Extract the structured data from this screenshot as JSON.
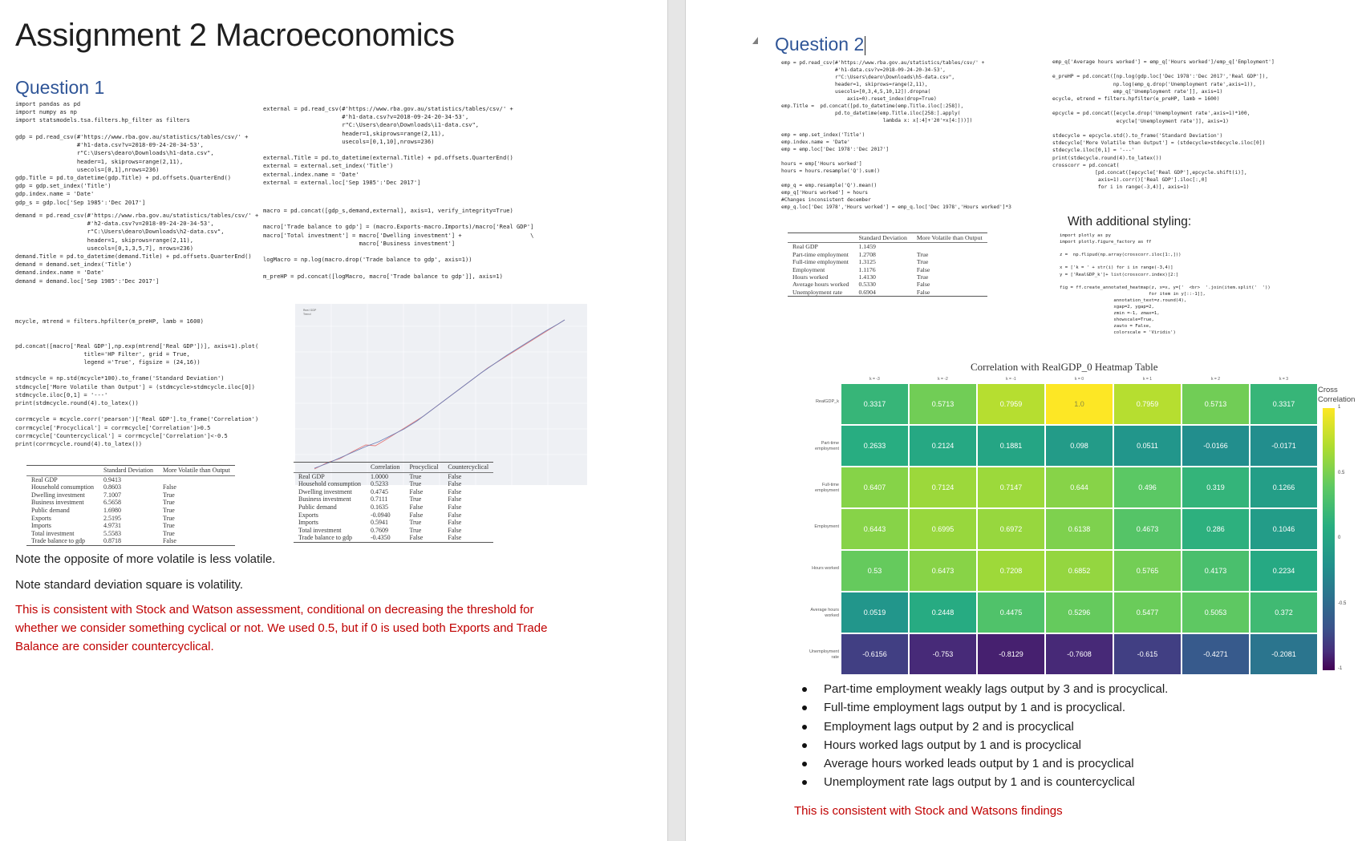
{
  "page1": {
    "title": "Assignment 2 Macroeconomics",
    "q1_heading": "Question 1",
    "code_imports": "import pandas as pd\nimport numpy as np\nimport statsmodels.tsa.filters.hp_filter as filters",
    "code_gdp": "gdp = pd.read_csv(#'https://www.rba.gov.au/statistics/tables/csv/' +\n                  #'h1-data.csv?v=2018-09-24-20-34-53',\n                  r\"C:\\Users\\dearo\\Downloads\\h1-data.csv\",\n                  header=1, skiprows=range(2,11),\n                  usecols=[0,1],nrows=236)\ngdp.Title = pd.to_datetime(gdp.Title) + pd.offsets.QuarterEnd()\ngdp = gdp.set_index('Title')\ngdp.index.name = 'Date'\ngdp_s = gdp.loc['Sep 1985':'Dec 2017']",
    "code_demand": "demand = pd.read_csv(#'https://www.rba.gov.au/statistics/tables/csv/' +\n                     #'h2-data.csv?v=2018-09-24-20-34-53',\n                     r\"C:\\Users\\dearo\\Downloads\\h2-data.csv\",\n                     header=1, skiprows=range(2,11),\n                     usecols=[0,1,3,5,7], nrows=236)\ndemand.Title = pd.to_datetime(demand.Title) + pd.offsets.QuarterEnd()\ndemand = demand.set_index('Title')\ndemand.index.name = 'Date'\ndemand = demand.loc['Sep 1985':'Dec 2017']",
    "code_external": "external = pd.read_csv(#'https://www.rba.gov.au/statistics/tables/csv/' +\n                       #'h1-data.csv?v=2018-09-24-20-34-53',\n                       r\"C:\\Users\\dearo\\Downloads\\i1-data.csv\",\n                       header=1,skiprows=range(2,11),\n                       usecols=[0,1,10],nrows=236)\n\nexternal.Title = pd.to_datetime(external.Title) + pd.offsets.QuarterEnd()\nexternal = external.set_index('Title')\nexternal.index.name = 'Date'\nexternal = external.loc['Sep 1985':'Dec 2017']",
    "code_macro": "macro = pd.concat([gdp_s,demand,external], axis=1, verify_integrity=True)\n\nmacro['Trade balance to gdp'] = (macro.Exports-macro.Imports)/macro['Real GDP']\nmacro['Total investment'] = macro['Dwelling investment'] +                    \\\n                            macro['Business investment']\n\nlogMacro = np.log(macro.drop('Trade balance to gdp', axis=1))\n\nm_preHP = pd.concat([logMacro, macro['Trade balance to gdp']], axis=1)",
    "code_filter": "mcycle, mtrend = filters.hpfilter(m_preHP, lamb = 1600)\n\n\npd.concat([macro['Real GDP'],np.exp(mtrend['Real GDP'])], axis=1).plot(\n                    title='HP Filter', grid = True,\n                    legend ='True', figsize = (24,16))\n\nstdmcycle = np.std(mcycle*100).to_frame('Standard Deviation')\nstdmcycle['More Volatile than Output'] = (stdmcycle>stdmcycle.iloc[0])\nstdmcycle.iloc[0,1] = '---'\nprint(stdmcycle.round(4).to_latex())\n\ncorrmcycle = mcycle.corr('pearson')['Real GDP'].to_frame('Correlation')\ncorrmcycle['Procyclical'] = corrmcycle['Correlation']>0.5\ncorrmcycle['Countercyclical'] = corrmcycle['Correlation']<-0.5\nprint(corrmcycle.round(4).to_latex())",
    "plot_legend": [
      "Real GDP",
      "Trend"
    ],
    "table_std": {
      "headers": [
        "",
        "Standard Deviation",
        "More Volatile than Output"
      ],
      "rows": [
        [
          "Real GDP",
          "0.9413",
          ""
        ],
        [
          "Household consumption",
          "0.8603",
          "False"
        ],
        [
          "Dwelling investment",
          "7.1007",
          "True"
        ],
        [
          "Business investment",
          "6.5658",
          "True"
        ],
        [
          "Public demand",
          "1.6980",
          "True"
        ],
        [
          "Exports",
          "2.5195",
          "True"
        ],
        [
          "Imports",
          "4.9731",
          "True"
        ],
        [
          "Total investment",
          "5.5583",
          "True"
        ],
        [
          "Trade balance to gdp",
          "0.8718",
          "False"
        ]
      ]
    },
    "table_corr": {
      "headers": [
        "",
        "Correlation",
        "Procyclical",
        "Countercyclical"
      ],
      "rows": [
        [
          "Real GDP",
          "1.0000",
          "True",
          "False"
        ],
        [
          "Household consumption",
          "0.5233",
          "True",
          "False"
        ],
        [
          "Dwelling investment",
          "0.4745",
          "False",
          "False"
        ],
        [
          "Business investment",
          "0.7111",
          "True",
          "False"
        ],
        [
          "Public demand",
          "0.1635",
          "False",
          "False"
        ],
        [
          "Exports",
          "-0.0940",
          "False",
          "False"
        ],
        [
          "Imports",
          "0.5941",
          "True",
          "False"
        ],
        [
          "Total investment",
          "0.7609",
          "True",
          "False"
        ],
        [
          "Trade balance to gdp",
          "-0.4350",
          "False",
          "False"
        ]
      ]
    },
    "note1": "Note the opposite of more volatile is less volatile.",
    "note2": "Note standard deviation square is volatility.",
    "note3": "This is consistent with Stock and Watson assessment, conditional on decreasing the threshold for whether we consider something cyclical or not. We used 0.5, but if 0 is used both Exports and Trade Balance are consider countercyclical."
  },
  "page2": {
    "q2_heading": "Question 2",
    "code_emp": "emp = pd.read_csv(#'https://www.rba.gov.au/statistics/tables/csv/' +\n                  #'h1-data.csv?v=2018-09-24-20-34-53',\n                  r\"C:\\Users\\dearo\\Downloads\\h5-data.csv\",\n                  header=1, skiprows=range(2,11),\n                  usecols=[0,3,4,5,10,12]).dropna(\n                      axis=0).reset_index(drop=True)\nemp.Title =  pd.concat([pd.to_datetime(emp.Title.iloc[:258]),\n                  pd.to_datetime(emp.Title.iloc[258:].apply(\n                                  lambda x: x[:4]+'20'+x[4:]))])\n\nemp = emp.set_index('Title')\nemp.index.name = 'Date'\nemp = emp.loc['Dec 1978':'Dec 2017']\n\nhours = emp['Hours worked']\nhours = hours.resample('Q').sum()\n\nemp_q = emp.resample('Q').mean()\nemp_q['Hours worked'] = hours\n#Changes inconsistent december\nemp_q.loc['Dec 1978','Hours worked'] = emp_q.loc['Dec 1978','Hours worked']*3",
    "code_right": "emp_q['Average hours worked'] = emp_q['Hours worked']/emp_q['Employment']\n\ne_preHP = pd.concat([np.log(gdp.loc['Dec 1978':'Dec 2017','Real GDP']),\n                    np.log(emp_q.drop('Unemployment rate',axis=1)),\n                    emp_q['Unemployment rate']], axis=1)\necycle, etrend = filters.hpfilter(e_preHP, lamb = 1600)\n\nepcycle = pd.concat([ecycle.drop('Unemployment rate',axis=1)*100,\n                     ecycle['Unemployment rate']], axis=1)\n\nstdecycle = epcycle.std().to_frame('Standard Deviation')\nstdecycle['More Volatile than Output'] = (stdecycle>stdecycle.iloc[0])\nstdecycle.iloc[0,1] = '---'\nprint(stdecycle.round(4).to_latex())\ncrosscorr = pd.concat(\n              [pd.concat([epcycle['Real GDP'],epcycle.shift(i)],\n               axis=1).corr()['Real GDP'].iloc[:,0]\n               for i in range(-3,4)], axis=1)",
    "styling_label": "With additional styling:",
    "code_styling": "import plotly as py\nimport plotly.figure_factory as ff\n\nz =  np.flipud(np.array(crosscorr.iloc[1:,]))\n\nx = ['k = ' + str(i) for i in range(-3,4)]\ny = ['RealGDP_k']+ list(crosscorr.index)[2:]\n\nfig = ff.create_annotated_heatmap(z, x=x, y=['  <br>  '.join(item.split('  '))\n                                 for item in y[::-1]],\n                    annotation_text=z.round(4),\n                    xgap=2, ygap=2,\n                    zmin =-1, zmax=1,\n                    showscale=True,\n                    zauto = False,\n                    colorscale = 'Viridis')",
    "table_std2": {
      "headers": [
        "",
        "Standard Deviation",
        "More Volatile than Output"
      ],
      "rows": [
        [
          "Real GDP",
          "1.1459",
          ""
        ],
        [
          "Part-time employment",
          "1.2708",
          "True"
        ],
        [
          "Full-time employment",
          "1.3125",
          "True"
        ],
        [
          "Employment",
          "1.1176",
          "False"
        ],
        [
          "Hours worked",
          "1.4130",
          "True"
        ],
        [
          "Average hours worked",
          "0.5330",
          "False"
        ],
        [
          "Unemployment rate",
          "0.6904",
          "False"
        ]
      ]
    },
    "heatmap": {
      "title": "Correlation with RealGDP_0 Heatmap Table",
      "colorbar_title": "Cross Correlation",
      "colorbar_ticks": [
        "1",
        "0.5",
        "0",
        "-0.5",
        "-1"
      ],
      "columns": [
        "k = -3",
        "k = -2",
        "k = -1",
        "k = 0",
        "k = 1",
        "k = 2",
        "k = 3"
      ],
      "row_labels": [
        "RealGDP_k",
        "Part-time employment",
        "Full-time employment",
        "Employment",
        "Hours worked",
        "Average hours worked",
        "Unemployment rate"
      ],
      "values": [
        [
          0.3317,
          0.5713,
          0.7959,
          1.0,
          0.7959,
          0.5713,
          0.3317
        ],
        [
          0.2633,
          0.2124,
          0.1881,
          0.098,
          0.0511,
          -0.0166,
          -0.0171
        ],
        [
          0.6407,
          0.7124,
          0.7147,
          0.644,
          0.496,
          0.319,
          0.1266
        ],
        [
          0.6443,
          0.6995,
          0.6972,
          0.6138,
          0.4673,
          0.286,
          0.1046
        ],
        [
          0.53,
          0.6473,
          0.7208,
          0.6852,
          0.5765,
          0.4173,
          0.2234
        ],
        [
          0.0519,
          0.2448,
          0.4475,
          0.5296,
          0.5477,
          0.5053,
          0.372
        ],
        [
          -0.6156,
          -0.753,
          -0.8129,
          -0.7608,
          -0.615,
          -0.4271,
          -0.2081
        ]
      ],
      "labels": [
        [
          "0.3317",
          "0.5713",
          "0.7959",
          "1.0",
          "0.7959",
          "0.5713",
          "0.3317"
        ],
        [
          "0.2633",
          "0.2124",
          "0.1881",
          "0.098",
          "0.0511",
          "-0.0166",
          "-0.0171"
        ],
        [
          "0.6407",
          "0.7124",
          "0.7147",
          "0.644",
          "0.496",
          "0.319",
          "0.1266"
        ],
        [
          "0.6443",
          "0.6995",
          "0.6972",
          "0.6138",
          "0.4673",
          "0.286",
          "0.1046"
        ],
        [
          "0.53",
          "0.6473",
          "0.7208",
          "0.6852",
          "0.5765",
          "0.4173",
          "0.2234"
        ],
        [
          "0.0519",
          "0.2448",
          "0.4475",
          "0.5296",
          "0.5477",
          "0.5053",
          "0.372"
        ],
        [
          "-0.6156",
          "-0.753",
          "-0.8129",
          "-0.7608",
          "-0.615",
          "-0.4271",
          "-0.2081"
        ]
      ]
    },
    "bullets": [
      "Part-time employment weakly lags output by 3 and is procyclical.",
      "Full-time employment lags output by 1 and is procyclical.",
      "Employment lags output by 2 and is procyclical",
      "Hours worked lags output by 1 and is procyclical",
      "Average hours worked leads output by 1 and is procyclical",
      "Unemployment rate lags output by 1 and is countercyclical"
    ],
    "conclusion": "This is consistent with Stock and Watsons findings"
  },
  "colors": {
    "heading_blue": "#2f5597",
    "note_red": "#c00000"
  }
}
